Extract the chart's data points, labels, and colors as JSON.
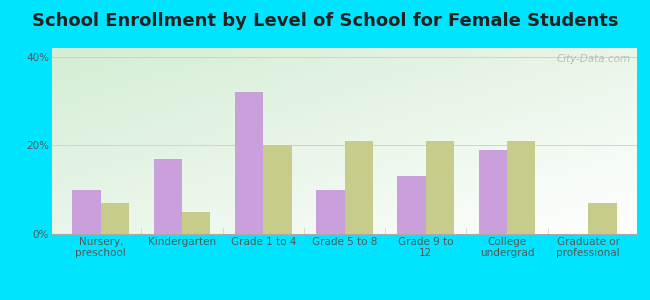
{
  "title": "School Enrollment by Level of School for Female Students",
  "categories": [
    "Nursery,\npreschool",
    "Kindergarten",
    "Grade 1 to 4",
    "Grade 5 to 8",
    "Grade 9 to\n12",
    "College\nundergrad",
    "Graduate or\nprofessional"
  ],
  "foley": [
    10.0,
    17.0,
    32.0,
    10.0,
    13.0,
    19.0,
    0.0
  ],
  "missouri": [
    7.0,
    5.0,
    20.0,
    21.0,
    21.0,
    21.0,
    7.0
  ],
  "foley_color": "#c9a0dc",
  "missouri_color": "#c8cc8a",
  "background_outer": "#00e5ff",
  "ylim": [
    0,
    42
  ],
  "yticks": [
    0,
    20,
    40
  ],
  "ytick_labels": [
    "0%",
    "20%",
    "40%"
  ],
  "bar_width": 0.35,
  "title_fontsize": 13,
  "tick_fontsize": 7.5,
  "legend_fontsize": 9
}
